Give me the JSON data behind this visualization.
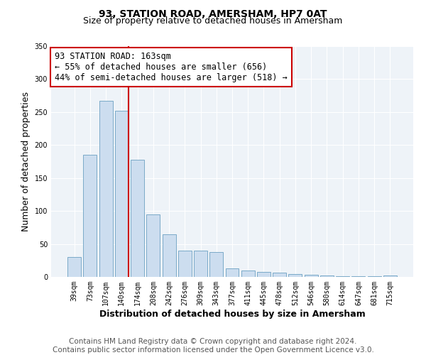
{
  "title": "93, STATION ROAD, AMERSHAM, HP7 0AT",
  "subtitle": "Size of property relative to detached houses in Amersham",
  "xlabel": "Distribution of detached houses by size in Amersham",
  "ylabel": "Number of detached properties",
  "bar_labels": [
    "39sqm",
    "73sqm",
    "107sqm",
    "140sqm",
    "174sqm",
    "208sqm",
    "242sqm",
    "276sqm",
    "309sqm",
    "343sqm",
    "377sqm",
    "411sqm",
    "445sqm",
    "478sqm",
    "512sqm",
    "546sqm",
    "580sqm",
    "614sqm",
    "647sqm",
    "681sqm",
    "715sqm"
  ],
  "bar_values": [
    30,
    185,
    267,
    252,
    178,
    95,
    65,
    40,
    40,
    38,
    13,
    10,
    8,
    6,
    4,
    3,
    2,
    1,
    1,
    1,
    2
  ],
  "bar_color": "#ccddef",
  "bar_edge_color": "#7aaac8",
  "vline_color": "#cc0000",
  "annotation_title": "93 STATION ROAD: 163sqm",
  "annotation_line1": "← 55% of detached houses are smaller (656)",
  "annotation_line2": "44% of semi-detached houses are larger (518) →",
  "annotation_box_facecolor": "#ffffff",
  "annotation_box_edgecolor": "#cc0000",
  "ylim": [
    0,
    350
  ],
  "yticks": [
    0,
    50,
    100,
    150,
    200,
    250,
    300,
    350
  ],
  "footer_line1": "Contains HM Land Registry data © Crown copyright and database right 2024.",
  "footer_line2": "Contains public sector information licensed under the Open Government Licence v3.0.",
  "background_color": "#ffffff",
  "plot_background_color": "#eef3f8",
  "title_fontsize": 10,
  "subtitle_fontsize": 9,
  "axis_label_fontsize": 9,
  "tick_fontsize": 7,
  "footer_fontsize": 7.5,
  "annotation_fontsize": 8.5
}
